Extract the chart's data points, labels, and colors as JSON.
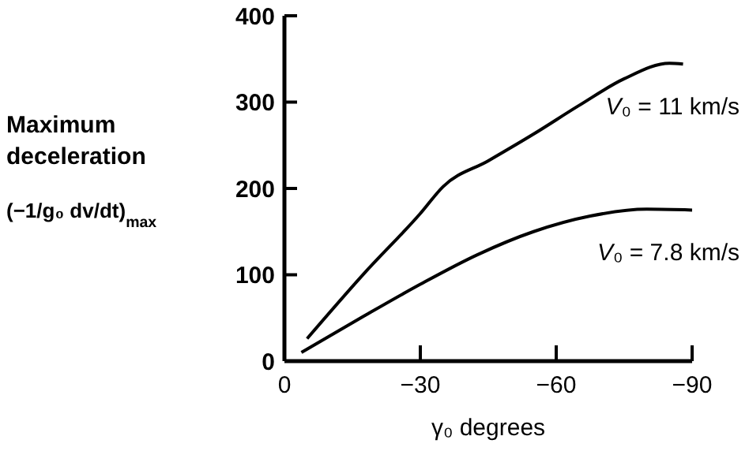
{
  "chart_data": {
    "type": "line",
    "xlabel": "γ₀ degrees",
    "ylabel": "Maximum\ndeceleration\n(−1/g₀ dv/dt)$_{max}$",
    "xlim": [
      0,
      -90
    ],
    "xticks": [
      0,
      -30,
      -60,
      -90
    ],
    "ylim": [
      0,
      400
    ],
    "yticks": [
      0,
      100,
      200,
      300,
      400
    ],
    "grid": false,
    "legend": false,
    "marker": "none",
    "line_style": "solid",
    "series": [
      {
        "name": "V₀ = 11 km/s",
        "color": "#000000",
        "x": [
          -5,
          -17.5,
          -30,
          -35,
          -45,
          -55,
          -65,
          -75,
          -85,
          -88
        ],
        "values": [
          26,
          101,
          171,
          202,
          232,
          263,
          296,
          327,
          345,
          344
        ]
      },
      {
        "name": "V₀ = 7.8 km/s",
        "color": "#000000",
        "x": [
          -3.75,
          -17.5,
          -30,
          -42.5,
          -55,
          -67.5,
          -80,
          -90
        ],
        "values": [
          10,
          52,
          89,
          123,
          150,
          168,
          176,
          175
        ]
      }
    ]
  }
}
